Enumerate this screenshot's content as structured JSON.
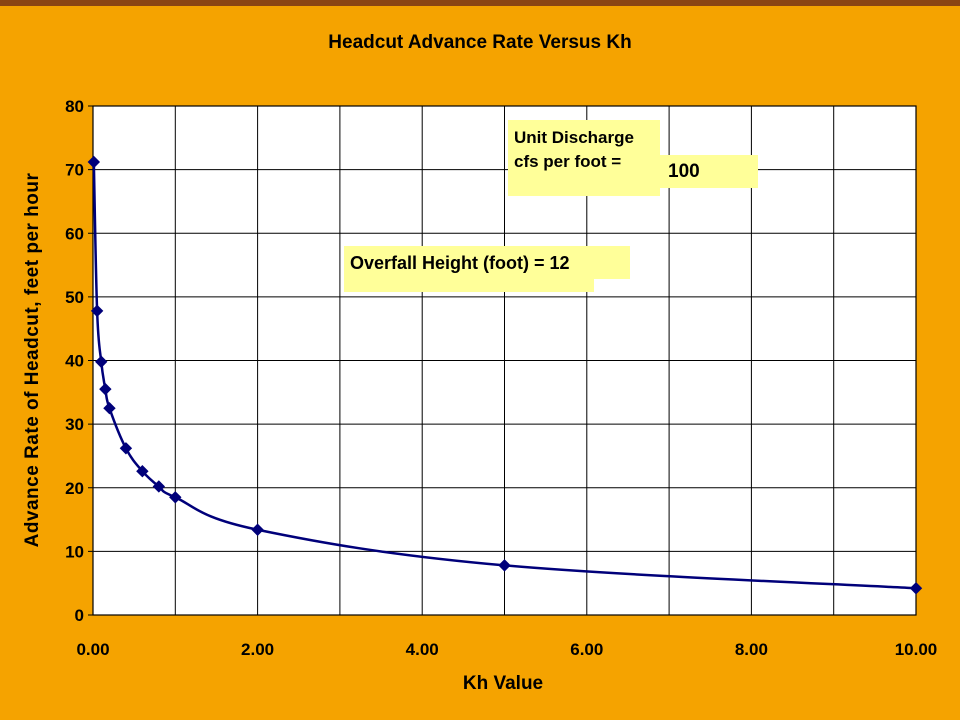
{
  "chart_data": {
    "type": "line",
    "title": "Headcut Advance Rate Versus Kh",
    "xlabel": "Kh Value",
    "ylabel": "Advance Rate of Headcut, feet per hour",
    "xlim": [
      0,
      10
    ],
    "ylim": [
      0,
      80
    ],
    "x_ticks": [
      "0.00",
      "2.00",
      "4.00",
      "6.00",
      "8.00",
      "10.00"
    ],
    "y_ticks": [
      "0",
      "10",
      "20",
      "30",
      "40",
      "50",
      "60",
      "70",
      "80"
    ],
    "x_minor_step": 1,
    "grid": true,
    "legend": "none",
    "colors": {
      "line": "#00007A",
      "plot_bg": "#FFFFFF",
      "page_bg": "#F5A300",
      "note_bg": "#FFFF99"
    },
    "series": [
      {
        "x": [
          0.01,
          0.05,
          0.1,
          0.15,
          0.2,
          0.4,
          0.6,
          0.8,
          1.0,
          2.0,
          5.0,
          10.0
        ],
        "y": [
          71.2,
          47.8,
          39.8,
          35.5,
          32.5,
          26.2,
          22.6,
          20.2,
          18.5,
          13.4,
          7.8,
          4.2
        ]
      }
    ],
    "annotations": {
      "unit_discharge_line1": "Unit Discharge",
      "unit_discharge_line2": "cfs per foot =",
      "unit_discharge_value": "100",
      "overfall": "Overfall Height (foot) = 12"
    }
  }
}
